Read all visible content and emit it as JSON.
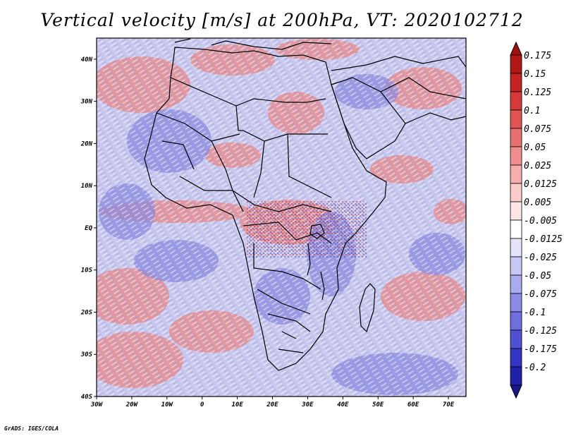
{
  "title": "Vertical velocity [m/s] at 200hPa, VT: 2020102712",
  "credit": "GrADS: IGES/COLA",
  "map": {
    "region": "Africa",
    "variable": "Vertical velocity",
    "units": "m/s",
    "level": "200hPa",
    "valid_time": "2020102712",
    "lon_range": [
      -30,
      75
    ],
    "lat_range": [
      -40,
      45
    ],
    "x_ticks": [
      {
        "lon": -30,
        "label": "30W"
      },
      {
        "lon": -20,
        "label": "20W"
      },
      {
        "lon": -10,
        "label": "10W"
      },
      {
        "lon": 0,
        "label": "0"
      },
      {
        "lon": 10,
        "label": "10E"
      },
      {
        "lon": 20,
        "label": "20E"
      },
      {
        "lon": 30,
        "label": "30E"
      },
      {
        "lon": 40,
        "label": "40E"
      },
      {
        "lon": 50,
        "label": "50E"
      },
      {
        "lon": 60,
        "label": "60E"
      },
      {
        "lon": 70,
        "label": "70E"
      }
    ],
    "y_ticks": [
      {
        "lat": 40,
        "label": "40N"
      },
      {
        "lat": 30,
        "label": "30N"
      },
      {
        "lat": 20,
        "label": "20N"
      },
      {
        "lat": 10,
        "label": "10N"
      },
      {
        "lat": 0,
        "label": "EQ"
      },
      {
        "lat": -10,
        "label": "10S"
      },
      {
        "lat": -20,
        "label": "20S"
      },
      {
        "lat": -30,
        "label": "30S"
      },
      {
        "lat": -40,
        "label": "40S"
      }
    ]
  },
  "colorbar": {
    "levels": [
      {
        "label": "0.175",
        "color": "#b01818"
      },
      {
        "label": "0.15",
        "color": "#c42424"
      },
      {
        "label": "0.125",
        "color": "#d43a3a"
      },
      {
        "label": "0.1",
        "color": "#e05454"
      },
      {
        "label": "0.075",
        "color": "#e87070"
      },
      {
        "label": "0.05",
        "color": "#ef8e8e"
      },
      {
        "label": "0.025",
        "color": "#f5aeae"
      },
      {
        "label": "0.0125",
        "color": "#facccc"
      },
      {
        "label": "0.005",
        "color": "#fde6e6"
      },
      {
        "label": "-0.005",
        "color": "#ffffff"
      },
      {
        "label": "-0.0125",
        "color": "#e4e4fa"
      },
      {
        "label": "-0.025",
        "color": "#c8c8f4"
      },
      {
        "label": "-0.05",
        "color": "#aaaaee"
      },
      {
        "label": "-0.075",
        "color": "#8c8ce6"
      },
      {
        "label": "-0.1",
        "color": "#6e6ede"
      },
      {
        "label": "-0.125",
        "color": "#5050d2"
      },
      {
        "label": "-0.175",
        "color": "#3434c2"
      },
      {
        "label": "-0.2",
        "color": "#2020aa"
      }
    ],
    "top_arrow_color": "#a01010",
    "bottom_arrow_color": "#18188a"
  },
  "colors": {
    "field_base": "#c8c8ee",
    "positive": "#e88a8a",
    "negative": "#8888e0",
    "border": "#000000"
  }
}
